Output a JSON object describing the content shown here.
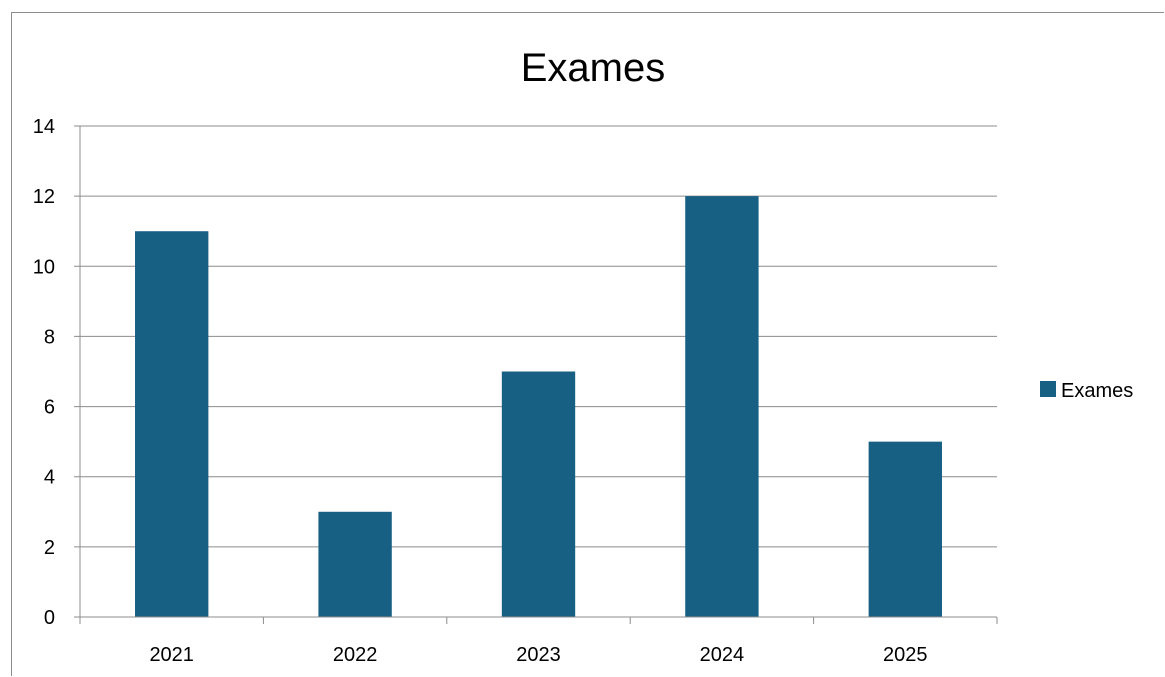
{
  "chart_data": {
    "type": "bar",
    "title": "Exames",
    "categories": [
      "2021",
      "2022",
      "2023",
      "2024",
      "2025"
    ],
    "series": [
      {
        "name": "Exames",
        "values": [
          11,
          3,
          7,
          12,
          5
        ]
      }
    ],
    "ylim": [
      0,
      14
    ],
    "yticks": [
      0,
      2,
      4,
      6,
      8,
      10,
      12,
      14
    ],
    "xlabel": "",
    "ylabel": "",
    "grid": true,
    "legend_position": "right",
    "colors": {
      "bar": "#176083",
      "grid": "#8c8c8c",
      "axis": "#8c8c8c"
    }
  }
}
